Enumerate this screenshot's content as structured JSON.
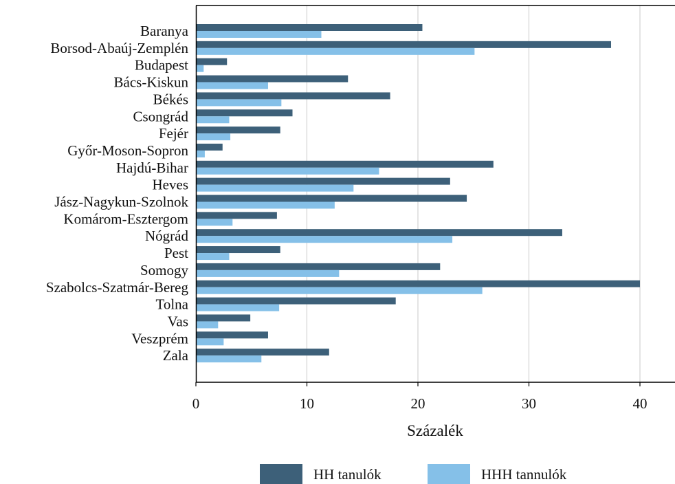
{
  "chart_data": {
    "type": "bar",
    "orientation": "horizontal",
    "categories": [
      "Baranya",
      "Borsod-Abaúj-Zemplén",
      "Budapest",
      "Bács-Kiskun",
      "Békés",
      "Csongrád",
      "Fejér",
      "Győr-Moson-Sopron",
      "Hajdú-Bihar",
      "Heves",
      "Jász-Nagykun-Szolnok",
      "Komárom-Esztergom",
      "Nógrád",
      "Pest",
      "Somogy",
      "Szabolcs-Szatmár-Bereg",
      "Tolna",
      "Vas",
      "Veszprém",
      "Zala"
    ],
    "series": [
      {
        "name": "HH tanulók",
        "color": "#3d6079",
        "values": [
          20.4,
          37.4,
          2.8,
          13.7,
          17.5,
          8.7,
          7.6,
          2.4,
          26.8,
          22.9,
          24.4,
          7.3,
          33.0,
          7.6,
          22.0,
          40.0,
          18.0,
          4.9,
          6.5,
          12.0
        ]
      },
      {
        "name": "HHH tannulók",
        "color": "#85c0e8",
        "values": [
          11.3,
          25.1,
          0.7,
          6.5,
          7.7,
          3.0,
          3.1,
          0.8,
          16.5,
          14.2,
          12.5,
          3.3,
          23.1,
          3.0,
          12.9,
          25.8,
          7.5,
          2.0,
          2.5,
          5.9
        ]
      }
    ],
    "xlabel": "Százalék",
    "ylabel": "",
    "xlim": [
      0,
      43
    ],
    "xticks": [
      0,
      10,
      20,
      30,
      40
    ],
    "grid": "vertical",
    "legend": "bottom"
  }
}
